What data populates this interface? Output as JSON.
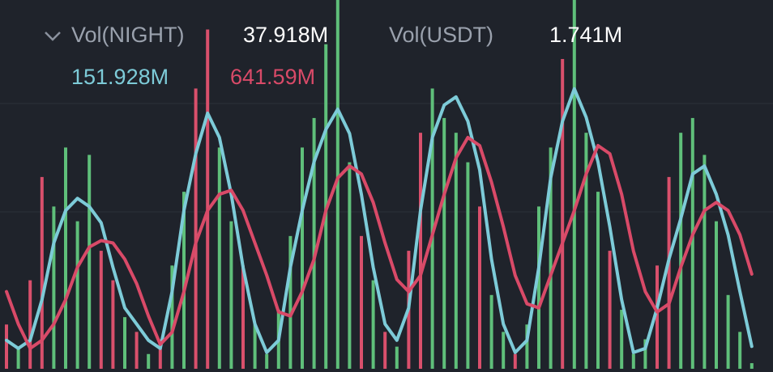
{
  "chart_data": {
    "type": "bar",
    "header": [
      {
        "label": "Vol(NIGHT)",
        "value": "37.918M"
      },
      {
        "label": "Vol(USDT)",
        "value": "1.741M"
      }
    ],
    "ylim": [
      0,
      2500
    ],
    "categories": [
      null,
      null,
      null,
      null,
      null,
      null,
      null,
      null,
      null,
      null,
      null,
      null,
      null,
      null,
      null,
      null,
      null,
      null,
      null,
      null,
      null,
      null,
      null,
      null,
      null,
      null,
      null,
      null,
      null,
      null,
      null,
      null,
      null,
      null,
      null,
      null,
      null,
      null,
      null,
      null,
      null,
      null,
      null,
      null,
      null,
      null,
      null,
      null,
      null,
      null,
      null,
      null,
      null,
      null,
      null,
      null,
      null,
      null,
      null,
      null,
      null,
      null,
      null,
      null
    ],
    "values": [
      300,
      150,
      600,
      1300,
      1100,
      1500,
      1000,
      1450,
      800,
      600,
      350,
      250,
      100,
      200,
      700,
      1200,
      1900,
      2300,
      1500,
      1000,
      700,
      300,
      100,
      400,
      900,
      1500,
      1700,
      2200,
      2500,
      1400,
      900,
      600,
      250,
      150,
      800,
      1600,
      1900,
      1700,
      1600,
      1400,
      1100,
      500,
      250,
      100,
      300,
      1100,
      1500,
      2100,
      2500,
      1600,
      1200,
      800,
      400,
      100,
      200,
      700,
      1300,
      1600,
      1700,
      1450,
      1000,
      500,
      250,
      38
    ],
    "bar_colors": [
      "#d9506c",
      "#5fbf7a",
      "#d9506c",
      "#d9506c",
      "#5fbf7a",
      "#5fbf7a",
      "#5fbf7a",
      "#5fbf7a",
      "#d9506c",
      "#d9506c",
      "#5fbf7a",
      "#d9506c",
      "#5fbf7a",
      "#d9506c",
      "#5fbf7a",
      "#5fbf7a",
      "#d9506c",
      "#d9506c",
      "#5fbf7a",
      "#5fbf7a",
      "#d9506c",
      "#5fbf7a",
      "#5fbf7a",
      "#5fbf7a",
      "#5fbf7a",
      "#5fbf7a",
      "#5fbf7a",
      "#5fbf7a",
      "#5fbf7a",
      "#5fbf7a",
      "#d9506c",
      "#5fbf7a",
      "#d9506c",
      "#5fbf7a",
      "#d9506c",
      "#d9506c",
      "#5fbf7a",
      "#5fbf7a",
      "#5fbf7a",
      "#5fbf7a",
      "#d9506c",
      "#5fbf7a",
      "#5fbf7a",
      "#d9506c",
      "#5fbf7a",
      "#5fbf7a",
      "#5fbf7a",
      "#d9506c",
      "#5fbf7a",
      "#5fbf7a",
      "#5fbf7a",
      "#d9506c",
      "#5fbf7a",
      "#5fbf7a",
      "#5fbf7a",
      "#d9506c",
      "#d9506c",
      "#5fbf7a",
      "#5fbf7a",
      "#5fbf7a",
      "#5fbf7a",
      "#5fbf7a",
      "#5fbf7a",
      "#5fbf7a"
    ],
    "lines": [
      {
        "color": "#7dcbd8",
        "current_label": "151.928M",
        "values": [
          193,
          138,
          193,
          468,
          853,
          1073,
          1155,
          1100,
          990,
          688,
          413,
          303,
          193,
          138,
          523,
          1073,
          1458,
          1733,
          1568,
          1183,
          688,
          303,
          110,
          193,
          688,
          1073,
          1403,
          1623,
          1760,
          1595,
          1183,
          688,
          303,
          193,
          413,
          1073,
          1568,
          1788,
          1843,
          1678,
          1348,
          743,
          303,
          110,
          193,
          688,
          1293,
          1678,
          1898,
          1705,
          1403,
          963,
          468,
          110,
          138,
          413,
          743,
          1018,
          1320,
          1375,
          1183,
          908,
          523,
          152
        ]
      },
      {
        "color": "#d94a68",
        "current_label": "641.59M",
        "values": [
          523,
          303,
          138,
          193,
          303,
          468,
          688,
          825,
          869,
          853,
          743,
          578,
          358,
          165,
          248,
          523,
          853,
          1073,
          1183,
          1210,
          1073,
          853,
          633,
          385,
          358,
          523,
          743,
          1073,
          1293,
          1375,
          1320,
          1128,
          853,
          605,
          523,
          633,
          908,
          1183,
          1430,
          1568,
          1513,
          1265,
          963,
          633,
          440,
          413,
          633,
          853,
          1073,
          1320,
          1513,
          1458,
          1183,
          798,
          523,
          385,
          440,
          688,
          908,
          1073,
          1128,
          1073,
          908,
          642
        ]
      }
    ]
  }
}
